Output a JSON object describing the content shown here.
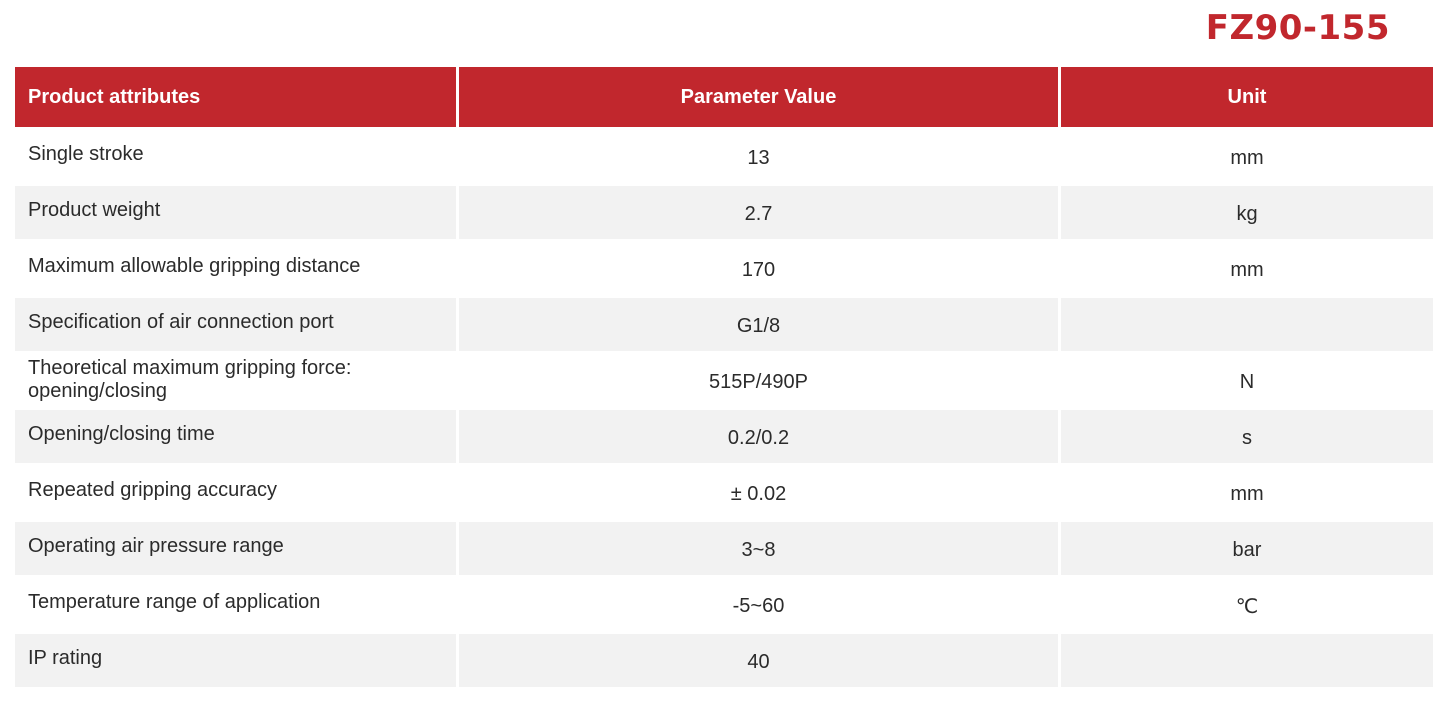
{
  "model": "FZ90-155",
  "table": {
    "headers": {
      "attribute": "Product attributes",
      "value": "Parameter Value",
      "unit": "Unit"
    },
    "rows": [
      {
        "attribute": "Single stroke",
        "value": "13",
        "unit": "mm"
      },
      {
        "attribute": "Product weight",
        "value": "2.7",
        "unit": "kg"
      },
      {
        "attribute": "Maximum allowable gripping distance",
        "value": "170",
        "unit": "mm"
      },
      {
        "attribute": "Specification of air connection port",
        "value": "G1/8",
        "unit": ""
      },
      {
        "attribute": "Theoretical maximum gripping force: opening/closing",
        "value": "515P/490P",
        "unit": "N"
      },
      {
        "attribute": "Opening/closing time",
        "value": "0.2/0.2",
        "unit": "s"
      },
      {
        "attribute": "Repeated gripping accuracy",
        "value": "± 0.02",
        "unit": "mm"
      },
      {
        "attribute": "Operating air pressure range",
        "value": "3~8",
        "unit": "bar"
      },
      {
        "attribute": "Temperature range of application",
        "value": "-5~60",
        "unit": "℃"
      },
      {
        "attribute": "IP rating",
        "value": "40",
        "unit": ""
      }
    ]
  },
  "colors": {
    "accent": "#c1272d",
    "row_alt": "#f2f2f2"
  }
}
